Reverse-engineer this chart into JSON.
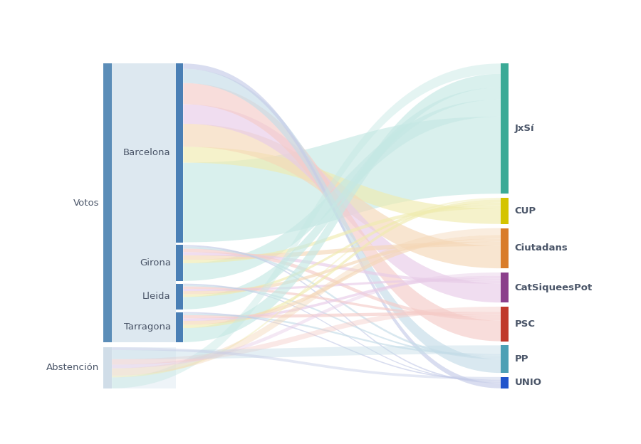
{
  "sources_left": [
    "Votos",
    "Abstención"
  ],
  "provinces": [
    "Barcelona",
    "Girona",
    "Lleida",
    "Tarragona"
  ],
  "targets": [
    "JxSí",
    "CUP",
    "Ciutadans",
    "CatSiqueesPot",
    "PSC",
    "PP",
    "UNIO"
  ],
  "left_bar_color": "#5b8db8",
  "abstenc_bar_color": "#d0dde8",
  "bg_votos_color": "#dde8f0",
  "bg_abstenc_color": "#eef4f8",
  "province_bar_color": "#4a7fb5",
  "target_colors": {
    "JxSí": "#3aaa96",
    "CUP": "#d4c400",
    "Ciutadans": "#d97c2a",
    "CatSiqueesPot": "#8b3f8b",
    "PSC": "#c0392b",
    "PP": "#4da0b5",
    "UNIO": "#2255cc"
  },
  "target_flow_colors": {
    "JxSí": "#c5e8e4",
    "CUP": "#f0ecb0",
    "Ciutadans": "#f5d8b8",
    "CatSiqueesPot": "#e8cce8",
    "PSC": "#f5ccc8",
    "PP": "#c5dde8",
    "UNIO": "#c5cce8"
  },
  "flows": {
    "Barcelona->JxSí": 450,
    "Barcelona->CUP": 90,
    "Barcelona->Ciutadans": 130,
    "Barcelona->CatSiqueesPot": 110,
    "Barcelona->PSC": 120,
    "Barcelona->PP": 80,
    "Barcelona->UNIO": 30,
    "Girona->JxSí": 100,
    "Girona->CUP": 20,
    "Girona->Ciutadans": 25,
    "Girona->CatSiqueesPot": 18,
    "Girona->PSC": 20,
    "Girona->PP": 12,
    "Girona->UNIO": 8,
    "Lleida->JxSí": 70,
    "Lleida->CUP": 15,
    "Lleida->Ciutadans": 18,
    "Lleida->CatSiqueesPot": 13,
    "Lleida->PSC": 14,
    "Lleida->PP": 9,
    "Lleida->UNIO": 6,
    "Tarragona->JxSí": 80,
    "Tarragona->CUP": 18,
    "Tarragona->Ciutadans": 22,
    "Tarragona->CatSiqueesPot": 15,
    "Tarragona->PSC": 18,
    "Tarragona->PP": 10,
    "Tarragona->UNIO": 7,
    "Abstención->JxSí": 60,
    "Abstención->CUP": 10,
    "Abstención->Ciutadans": 40,
    "Abstención->CatSiqueesPot": 20,
    "Abstención->PSC": 30,
    "Abstención->PP": 50,
    "Abstención->UNIO": 15
  },
  "background_color": "#ffffff",
  "label_fontsize": 9.5
}
